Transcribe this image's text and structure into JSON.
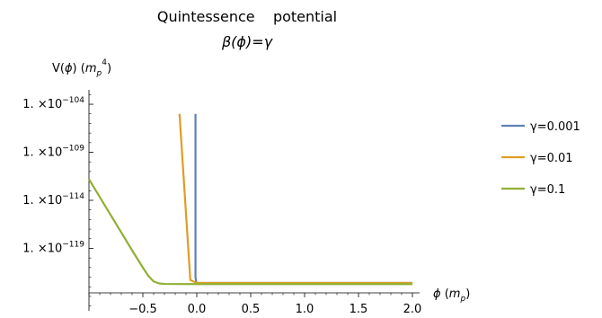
{
  "chart_data": {
    "type": "line",
    "title": "Quintessence    potential",
    "subtitle": "β(ϕ)=γ",
    "xlabel": "ϕ (m_p)",
    "ylabel": "V(ϕ) (m_p^4)",
    "y_scale": "log10",
    "xlim": [
      -1.0,
      2.0
    ],
    "ylim_log10": [
      -125.5,
      -102.5
    ],
    "x_ticks": [
      -0.5,
      0.0,
      0.5,
      1.0,
      1.5,
      2.0
    ],
    "x_tick_labels": [
      "−0.5",
      "0.0",
      "0.5",
      "1.0",
      "1.5",
      "2.0"
    ],
    "y_ticks_log10": [
      -104,
      -109,
      -114,
      -119
    ],
    "y_tick_mantissa": "1. ×10",
    "y_tick_exponents": [
      "−104",
      "−109",
      "−114",
      "−119"
    ],
    "legend_position": "right",
    "series": [
      {
        "name": "γ=0.001",
        "color": "#5e81b5",
        "points": [
          [
            -0.012,
            -105.0
          ],
          [
            -0.012,
            -122.0
          ],
          [
            -0.005,
            -122.5
          ],
          [
            0.0,
            -122.6
          ],
          [
            2.0,
            -122.6
          ]
        ]
      },
      {
        "name": "γ=0.01",
        "color": "#e19c24",
        "points": [
          [
            -0.16,
            -105.0
          ],
          [
            -0.06,
            -122.3
          ],
          [
            0.0,
            -122.6
          ],
          [
            2.0,
            -122.6
          ]
        ]
      },
      {
        "name": "γ=0.1",
        "color": "#8fb032",
        "points": [
          [
            -1.0,
            -111.8
          ],
          [
            -0.9,
            -113.65
          ],
          [
            -0.8,
            -115.5
          ],
          [
            -0.7,
            -117.35
          ],
          [
            -0.6,
            -119.2
          ],
          [
            -0.5,
            -121.0
          ],
          [
            -0.45,
            -121.85
          ],
          [
            -0.4,
            -122.45
          ],
          [
            -0.35,
            -122.65
          ],
          [
            -0.3,
            -122.7
          ],
          [
            0.0,
            -122.72
          ],
          [
            2.0,
            -122.72
          ]
        ]
      }
    ]
  }
}
